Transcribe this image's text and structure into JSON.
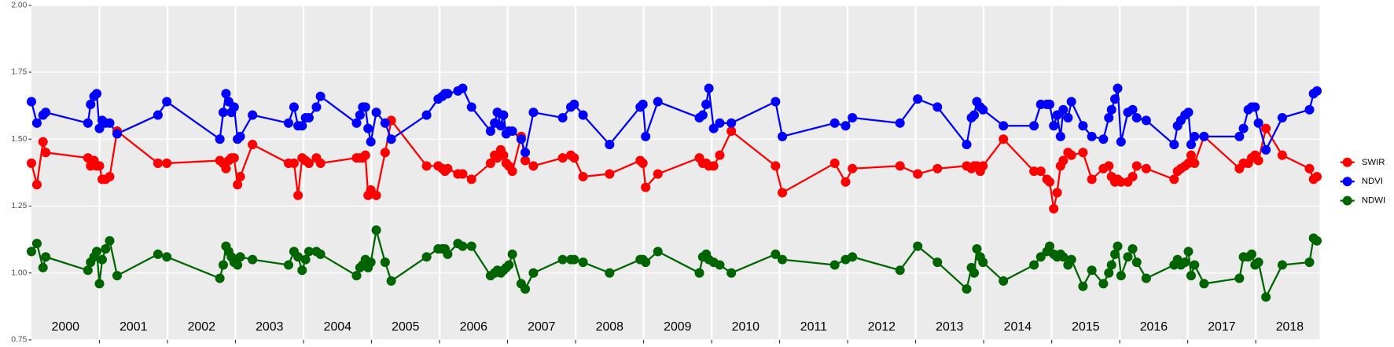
{
  "chart_data": {
    "type": "line",
    "x": [
      2000.0,
      2000.08,
      2000.17,
      2000.21,
      2000.83,
      2000.87,
      2000.92,
      2000.96,
      2001.0,
      2001.04,
      2001.09,
      2001.15,
      2001.26,
      2001.86,
      2001.99,
      2002.77,
      2002.82,
      2002.86,
      2002.9,
      2002.94,
      2002.98,
      2003.03,
      2003.07,
      2003.25,
      2003.78,
      2003.86,
      2003.92,
      2003.98,
      2004.03,
      2004.08,
      2004.19,
      2004.25,
      2004.78,
      2004.83,
      2004.87,
      2004.91,
      2004.95,
      2004.99,
      2005.07,
      2005.2,
      2005.29,
      2005.81,
      2005.98,
      2006.04,
      2006.08,
      2006.12,
      2006.27,
      2006.34,
      2006.47,
      2006.75,
      2006.81,
      2006.85,
      2006.9,
      2006.94,
      2006.98,
      2007.02,
      2007.07,
      2007.2,
      2007.26,
      2007.38,
      2007.81,
      2007.93,
      2007.98,
      2008.11,
      2008.5,
      2008.95,
      2008.99,
      2009.03,
      2009.21,
      2009.82,
      2009.87,
      2009.92,
      2009.96,
      2010.03,
      2010.12,
      2010.29,
      2010.94,
      2011.04,
      2011.81,
      2011.97,
      2012.07,
      2012.77,
      2013.03,
      2013.32,
      2013.75,
      2013.82,
      2013.86,
      2013.9,
      2013.95,
      2013.99,
      2014.29,
      2014.74,
      2014.84,
      2014.93,
      2014.97,
      2015.03,
      2015.08,
      2015.13,
      2015.17,
      2015.24,
      2015.29,
      2015.46,
      2015.59,
      2015.76,
      2015.84,
      2015.88,
      2015.93,
      2015.97,
      2016.02,
      2016.12,
      2016.19,
      2016.25,
      2016.39,
      2016.8,
      2016.85,
      2016.9,
      2016.96,
      2017.01,
      2017.05,
      2017.1,
      2017.24,
      2017.76,
      2017.82,
      2017.89,
      2017.94,
      2017.99,
      2018.04,
      2018.15,
      2018.39,
      2018.79,
      2018.85,
      2018.9
    ],
    "series": [
      {
        "name": "SWIR",
        "color": "#ff0000",
        "values": [
          1.41,
          1.33,
          1.49,
          1.45,
          1.43,
          1.4,
          1.42,
          1.4,
          1.4,
          1.35,
          1.35,
          1.36,
          1.53,
          1.41,
          1.41,
          1.42,
          1.41,
          1.39,
          1.42,
          1.43,
          1.43,
          1.33,
          1.36,
          1.48,
          1.41,
          1.41,
          1.29,
          1.43,
          1.42,
          1.41,
          1.43,
          1.41,
          1.43,
          1.43,
          1.43,
          1.44,
          1.29,
          1.31,
          1.29,
          1.45,
          1.57,
          1.4,
          1.4,
          1.39,
          1.38,
          1.39,
          1.37,
          1.37,
          1.35,
          1.41,
          1.44,
          1.43,
          1.46,
          1.44,
          1.41,
          1.4,
          1.38,
          1.51,
          1.42,
          1.4,
          1.43,
          1.44,
          1.43,
          1.36,
          1.37,
          1.42,
          1.41,
          1.32,
          1.37,
          1.43,
          1.41,
          1.41,
          1.4,
          1.4,
          1.44,
          1.53,
          1.4,
          1.3,
          1.41,
          1.34,
          1.39,
          1.4,
          1.37,
          1.39,
          1.4,
          1.39,
          1.4,
          1.4,
          1.38,
          1.4,
          1.5,
          1.38,
          1.38,
          1.35,
          1.34,
          1.24,
          1.3,
          1.4,
          1.42,
          1.45,
          1.44,
          1.45,
          1.35,
          1.39,
          1.4,
          1.36,
          1.34,
          1.35,
          1.34,
          1.34,
          1.36,
          1.4,
          1.39,
          1.35,
          1.38,
          1.39,
          1.4,
          1.41,
          1.44,
          1.41,
          1.51,
          1.39,
          1.41,
          1.41,
          1.43,
          1.44,
          1.42,
          1.54,
          1.44,
          1.39,
          1.35,
          1.36
        ]
      },
      {
        "name": "NDVI",
        "color": "#0000ff",
        "values": [
          1.64,
          1.56,
          1.59,
          1.6,
          1.56,
          1.63,
          1.66,
          1.67,
          1.54,
          1.57,
          1.56,
          1.56,
          1.52,
          1.59,
          1.64,
          1.5,
          1.6,
          1.67,
          1.64,
          1.6,
          1.62,
          1.5,
          1.51,
          1.59,
          1.56,
          1.62,
          1.55,
          1.55,
          1.58,
          1.58,
          1.62,
          1.66,
          1.56,
          1.59,
          1.62,
          1.62,
          1.54,
          1.49,
          1.6,
          1.56,
          1.5,
          1.59,
          1.65,
          1.66,
          1.67,
          1.67,
          1.68,
          1.69,
          1.62,
          1.53,
          1.56,
          1.6,
          1.55,
          1.59,
          1.52,
          1.53,
          1.53,
          1.5,
          1.45,
          1.6,
          1.58,
          1.62,
          1.63,
          1.59,
          1.48,
          1.62,
          1.63,
          1.51,
          1.64,
          1.58,
          1.59,
          1.63,
          1.69,
          1.54,
          1.56,
          1.56,
          1.64,
          1.51,
          1.56,
          1.55,
          1.58,
          1.56,
          1.65,
          1.62,
          1.48,
          1.58,
          1.59,
          1.64,
          1.62,
          1.61,
          1.55,
          1.55,
          1.63,
          1.63,
          1.63,
          1.55,
          1.59,
          1.51,
          1.61,
          1.58,
          1.64,
          1.55,
          1.51,
          1.5,
          1.58,
          1.61,
          1.65,
          1.69,
          1.49,
          1.6,
          1.61,
          1.58,
          1.57,
          1.48,
          1.55,
          1.57,
          1.59,
          1.6,
          1.48,
          1.51,
          1.51,
          1.51,
          1.54,
          1.61,
          1.62,
          1.62,
          1.56,
          1.46,
          1.58,
          1.61,
          1.67,
          1.68
        ]
      },
      {
        "name": "NDWI",
        "color": "#006400",
        "values": [
          1.08,
          1.11,
          1.02,
          1.06,
          1.01,
          1.04,
          1.06,
          1.08,
          0.96,
          1.05,
          1.09,
          1.12,
          0.99,
          1.07,
          1.06,
          0.98,
          1.03,
          1.1,
          1.08,
          1.06,
          1.04,
          1.03,
          1.06,
          1.05,
          1.03,
          1.08,
          1.06,
          1.01,
          1.05,
          1.08,
          1.08,
          1.07,
          0.99,
          1.02,
          1.03,
          1.05,
          1.02,
          1.04,
          1.16,
          1.04,
          0.97,
          1.06,
          1.09,
          1.09,
          1.09,
          1.07,
          1.11,
          1.1,
          1.1,
          0.99,
          1.0,
          1.01,
          1.0,
          1.01,
          1.02,
          1.03,
          1.07,
          0.96,
          0.94,
          1.0,
          1.05,
          1.05,
          1.05,
          1.04,
          1.0,
          1.05,
          1.05,
          1.04,
          1.08,
          1.0,
          1.06,
          1.07,
          1.05,
          1.04,
          1.03,
          1.0,
          1.07,
          1.05,
          1.03,
          1.05,
          1.06,
          1.01,
          1.1,
          1.04,
          0.94,
          1.02,
          1.0,
          1.09,
          1.06,
          1.04,
          0.97,
          1.03,
          1.06,
          1.08,
          1.1,
          1.07,
          1.06,
          1.07,
          1.06,
          1.03,
          1.05,
          0.95,
          1.01,
          0.96,
          1.0,
          1.03,
          1.07,
          1.1,
          0.99,
          1.06,
          1.09,
          1.04,
          0.98,
          1.03,
          1.05,
          1.03,
          1.04,
          1.08,
          0.99,
          1.03,
          0.96,
          0.98,
          1.06,
          1.06,
          1.07,
          1.03,
          1.04,
          0.91,
          1.03,
          1.04,
          1.13,
          1.12
        ]
      }
    ],
    "xlim": [
      2000,
      2018.94
    ],
    "ylim": [
      0.75,
      2.0
    ],
    "yticks": [
      {
        "value": 0.75,
        "label": "0.75"
      },
      {
        "value": 1.0,
        "label": "1.00"
      },
      {
        "value": 1.25,
        "label": "1.25"
      },
      {
        "value": 1.5,
        "label": "1.50"
      },
      {
        "value": 1.75,
        "label": "1.75"
      },
      {
        "value": 2.0,
        "label": "2.00"
      }
    ],
    "xticks": [
      {
        "value": 2000.5,
        "label": "2000"
      },
      {
        "value": 2001.5,
        "label": "2001"
      },
      {
        "value": 2002.5,
        "label": "2002"
      },
      {
        "value": 2003.5,
        "label": "2003"
      },
      {
        "value": 2004.5,
        "label": "2004"
      },
      {
        "value": 2005.5,
        "label": "2005"
      },
      {
        "value": 2006.5,
        "label": "2006"
      },
      {
        "value": 2007.5,
        "label": "2007"
      },
      {
        "value": 2008.5,
        "label": "2008"
      },
      {
        "value": 2009.5,
        "label": "2009"
      },
      {
        "value": 2010.5,
        "label": "2010"
      },
      {
        "value": 2011.5,
        "label": "2011"
      },
      {
        "value": 2012.5,
        "label": "2012"
      },
      {
        "value": 2013.5,
        "label": "2013"
      },
      {
        "value": 2014.5,
        "label": "2014"
      },
      {
        "value": 2015.5,
        "label": "2015"
      },
      {
        "value": 2016.5,
        "label": "2016"
      },
      {
        "value": 2017.5,
        "label": "2017"
      },
      {
        "value": 2018.5,
        "label": "2018"
      }
    ],
    "year_boundaries": [
      2001,
      2002,
      2003,
      2004,
      2005,
      2006,
      2007,
      2008,
      2009,
      2010,
      2011,
      2012,
      2013,
      2014,
      2015,
      2016,
      2017,
      2018
    ],
    "grid": true,
    "legend": "right"
  }
}
